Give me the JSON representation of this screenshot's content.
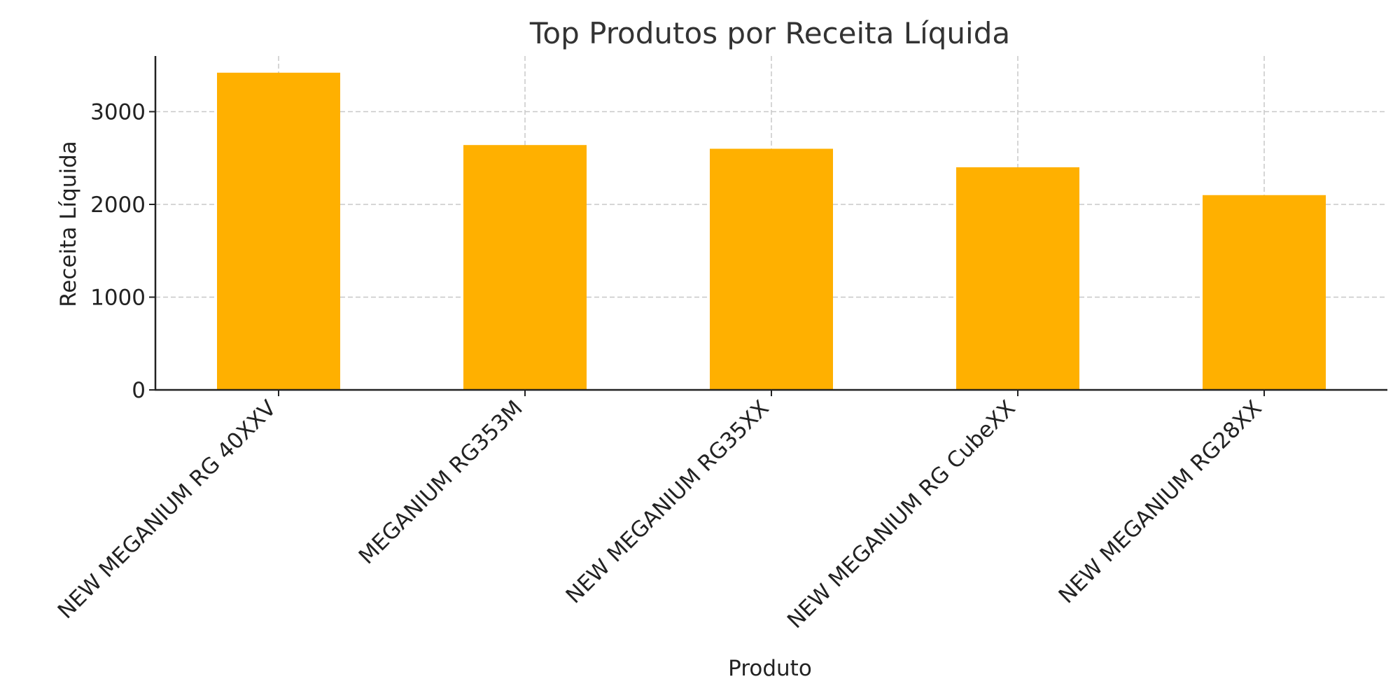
{
  "chart_data": {
    "type": "bar",
    "title": "Top Produtos por Receita Líquida",
    "xlabel": "Produto",
    "ylabel": "Receita Líquida",
    "categories": [
      "NEW MEGANIUM RG 40XXV",
      "MEGANIUM RG353M",
      "NEW MEGANIUM RG35XX",
      "NEW MEGANIUM RG CubeXX",
      "NEW MEGANIUM RG28XX"
    ],
    "values": [
      3420,
      2640,
      2600,
      2400,
      2100
    ],
    "ylim": [
      0,
      3600
    ],
    "yticks": [
      0,
      1000,
      2000,
      3000
    ],
    "ytick_labels": [
      "0",
      "1000",
      "2000",
      "3000"
    ],
    "grid": true,
    "bar_color": "#FFB000"
  }
}
